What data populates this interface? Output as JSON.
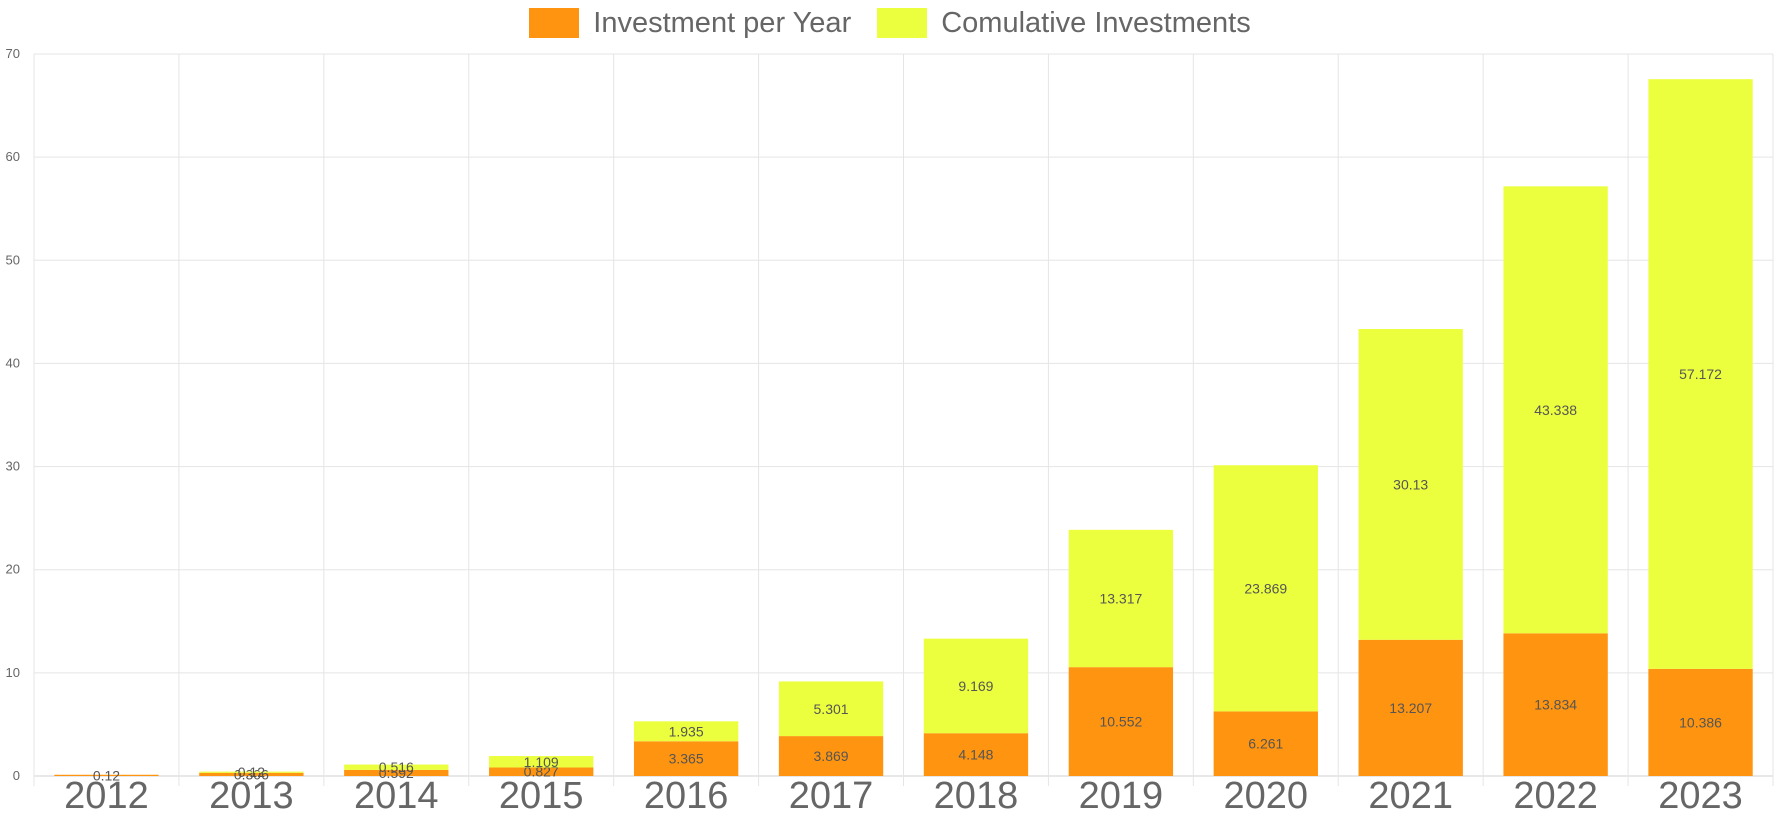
{
  "chart_data": {
    "type": "bar",
    "stacked": true,
    "categories": [
      "2012",
      "2013",
      "2014",
      "2015",
      "2016",
      "2017",
      "2018",
      "2019",
      "2020",
      "2021",
      "2022",
      "2023"
    ],
    "series": [
      {
        "name": "Investment per Year",
        "color": "#ff9410",
        "values": [
          0.12,
          0.306,
          0.592,
          0.827,
          3.365,
          3.869,
          4.148,
          10.552,
          6.261,
          13.207,
          13.834,
          10.386
        ],
        "labels": [
          "0.12",
          "0.306",
          "0.592",
          "0.827",
          "3.365",
          "3.869",
          "4.148",
          "10.552",
          "6.261",
          "13.207",
          "13.834",
          "10.386"
        ]
      },
      {
        "name": "Comulative Investments",
        "color": "#ecff3f",
        "values": [
          0,
          0.12,
          0.516,
          1.109,
          1.935,
          5.301,
          9.169,
          13.317,
          23.869,
          30.13,
          43.338,
          57.172
        ],
        "labels": [
          "0",
          "0.12",
          "0.516",
          "1.109",
          "1.935",
          "5.301",
          "9.169",
          "13.317",
          "23.869",
          "30.13",
          "43.338",
          "57.172"
        ]
      }
    ],
    "ylim": [
      0,
      70
    ],
    "y_ticks": [
      "0",
      "10",
      "20",
      "30",
      "40",
      "50",
      "60",
      "70"
    ],
    "grid": true,
    "legend_position": "top-center",
    "title": "",
    "xlabel": "",
    "ylabel": ""
  }
}
